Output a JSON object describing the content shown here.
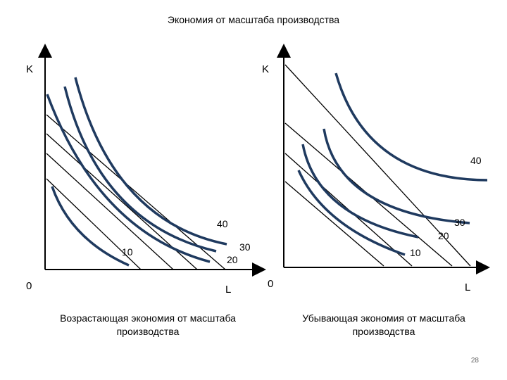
{
  "title": "Экономия от масштаба производства",
  "left": {
    "y_axis_label": "K",
    "x_axis_label": "L",
    "origin_label": "0",
    "iso_labels": [
      "10",
      "20",
      "30",
      "40"
    ],
    "caption_line1": "Возрастающая экономия от масштаба",
    "caption_line2": "производства"
  },
  "right": {
    "y_axis_label": "K",
    "x_axis_label": "L",
    "origin_label": "0",
    "iso_labels": [
      "10",
      "20",
      "30",
      "40"
    ],
    "caption_line1": "Убывающая экономия от масштаба",
    "caption_line2": "производства"
  },
  "page_number": "28",
  "colors": {
    "isoquant": "#1f3a5f",
    "isocost": "#000000",
    "axis": "#000000"
  }
}
